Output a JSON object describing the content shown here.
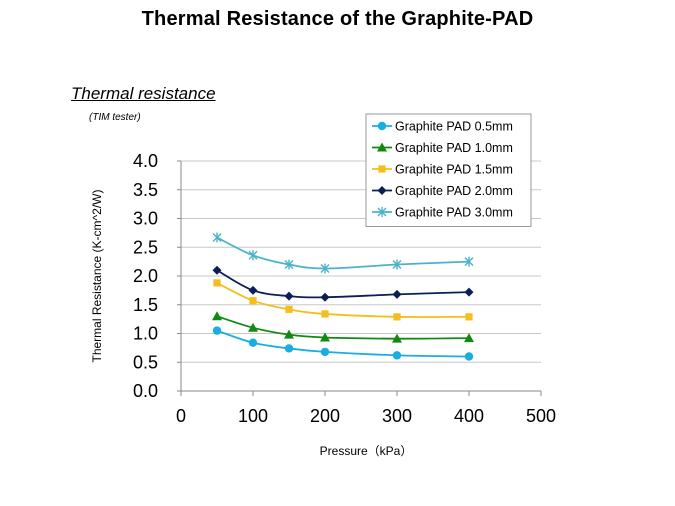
{
  "page": {
    "title": "Thermal Resistance of the Graphite-PAD",
    "section_title": "Thermal resistance",
    "section_note": "(TIM tester)"
  },
  "chart_data": {
    "type": "line",
    "xlabel": "Pressure（kPa）",
    "ylabel": "Thermal Resistance (K-cm^2/W)",
    "xlim": [
      0,
      500
    ],
    "ylim": [
      0,
      4
    ],
    "x_ticks": [
      0,
      100,
      200,
      300,
      400,
      500
    ],
    "y_ticks": [
      0.0,
      0.5,
      1.0,
      1.5,
      2.0,
      2.5,
      3.0,
      3.5,
      4.0
    ],
    "grid": "horizontal",
    "legend_position": "top-right",
    "x": [
      50,
      100,
      150,
      200,
      300,
      400
    ],
    "series": [
      {
        "name": "Graphite PAD 0.5mm",
        "values": [
          1.05,
          0.84,
          0.74,
          0.68,
          0.62,
          0.6
        ],
        "color": "#1aaee0",
        "marker": "circle"
      },
      {
        "name": "Graphite PAD 1.0mm",
        "values": [
          1.3,
          1.1,
          0.98,
          0.93,
          0.91,
          0.92
        ],
        "color": "#128a12",
        "marker": "triangle"
      },
      {
        "name": "Graphite PAD 1.5mm",
        "values": [
          1.88,
          1.57,
          1.42,
          1.34,
          1.29,
          1.29
        ],
        "color": "#f5be1e",
        "marker": "square"
      },
      {
        "name": "Graphite PAD 2.0mm",
        "values": [
          2.1,
          1.75,
          1.65,
          1.63,
          1.68,
          1.72
        ],
        "color": "#0c1f55",
        "marker": "diamond"
      },
      {
        "name": "Graphite PAD 3.0mm",
        "values": [
          2.67,
          2.36,
          2.2,
          2.13,
          2.2,
          2.25
        ],
        "color": "#4bb3c8",
        "marker": "star"
      }
    ]
  }
}
